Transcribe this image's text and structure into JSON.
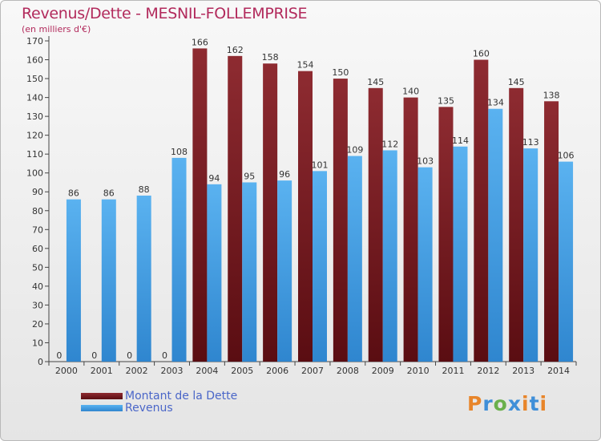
{
  "title": "Revenus/Dette - MESNIL-FOLLEMPRISE",
  "subtitle": "(en milliers d'€)",
  "colors": {
    "dette": "#7a1f24",
    "revenus": "#4ea6e8",
    "title": "#b22a5c",
    "legend_text": "#4a66c8"
  },
  "chart_data": {
    "type": "bar",
    "categories": [
      "2000",
      "2001",
      "2002",
      "2003",
      "2004",
      "2005",
      "2006",
      "2007",
      "2008",
      "2009",
      "2010",
      "2011",
      "2012",
      "2013",
      "2014"
    ],
    "series": [
      {
        "name": "Montant de la Dette",
        "values": [
          0,
          0,
          0,
          0,
          166,
          162,
          158,
          154,
          150,
          145,
          140,
          135,
          160,
          145,
          138
        ]
      },
      {
        "name": "Revenus",
        "values": [
          86,
          86,
          88,
          108,
          94,
          95,
          96,
          101,
          109,
          112,
          103,
          114,
          134,
          113,
          106
        ]
      }
    ],
    "ylim": [
      0,
      170
    ],
    "yticks": [
      0,
      10,
      20,
      30,
      40,
      50,
      60,
      70,
      80,
      90,
      100,
      110,
      120,
      130,
      140,
      150,
      160,
      170
    ],
    "grid": false,
    "legend_position": "bottom-left"
  },
  "logo": {
    "letters": [
      "P",
      "r",
      "o",
      "x",
      "i",
      "t",
      "i"
    ],
    "colors": [
      "#e8852a",
      "#3f8fd8",
      "#6ab04c",
      "#3f8fd8",
      "#e8852a",
      "#3f8fd8",
      "#e8852a"
    ]
  }
}
